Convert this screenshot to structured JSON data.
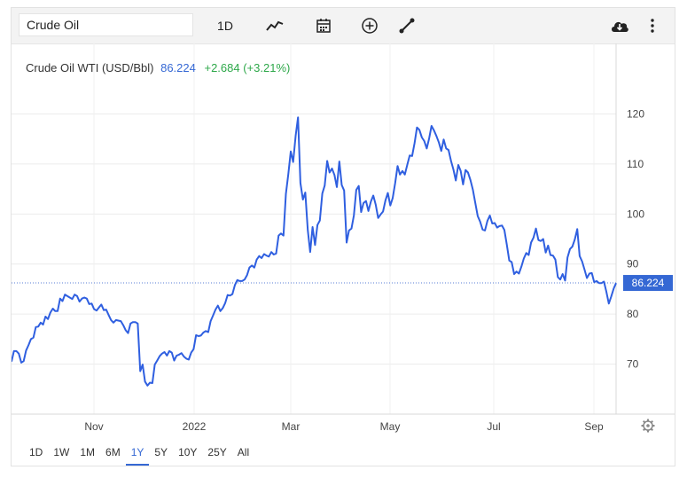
{
  "toolbar": {
    "search_value": "Crude Oil",
    "interval_label": "1D",
    "icons": [
      "line-chart-icon",
      "calendar-icon",
      "add-circle-icon",
      "draw-line-icon",
      "cloud-download-icon",
      "more-vertical-icon"
    ]
  },
  "legend": {
    "name": "Crude Oil WTI (USD/Bbl)",
    "price": "86.224",
    "change": "+2.684 (+3.21%)"
  },
  "price_tag": "86.224",
  "ranges": [
    "1D",
    "1W",
    "1M",
    "6M",
    "1Y",
    "5Y",
    "10Y",
    "25Y",
    "All"
  ],
  "active_range": "1Y",
  "colors": {
    "line": "#2f5fe0",
    "accent": "#3568d4",
    "up": "#2ea84a"
  },
  "chart_data": {
    "type": "line",
    "title": "Crude Oil WTI (USD/Bbl)",
    "x_tick_labels": [
      "Nov",
      "2022",
      "Mar",
      "May",
      "Jul",
      "Sep"
    ],
    "y_ticks": [
      70,
      80,
      90,
      100,
      110,
      120
    ],
    "ylim": [
      60,
      127
    ],
    "last_value": 86.224,
    "grid": true,
    "series": [
      {
        "name": "Crude Oil WTI (USD/Bbl)",
        "values": [
          70.5,
          72.6,
          72.6,
          72.1,
          70.3,
          70.6,
          72.7,
          73.8,
          75.0,
          75.3,
          77.4,
          77.5,
          78.3,
          77.9,
          79.5,
          79.0,
          80.3,
          81.1,
          80.6,
          80.6,
          83.1,
          82.6,
          83.9,
          83.6,
          83.3,
          83.0,
          83.9,
          83.6,
          82.5,
          83.1,
          83.3,
          83.1,
          82.0,
          82.1,
          81.0,
          80.7,
          81.3,
          81.9,
          80.8,
          80.9,
          79.8,
          78.8,
          78.3,
          78.8,
          78.7,
          78.6,
          77.8,
          76.8,
          76.2,
          78.1,
          78.4,
          78.4,
          78.1,
          68.6,
          69.9,
          66.5,
          65.7,
          66.3,
          66.2,
          69.9,
          70.7,
          71.6,
          72.1,
          72.4,
          71.7,
          72.6,
          72.3,
          70.7,
          71.7,
          71.9,
          72.2,
          71.5,
          71.1,
          70.9,
          72.3,
          73.0,
          75.8,
          75.6,
          75.7,
          76.3,
          76.6,
          76.4,
          78.6,
          79.7,
          80.9,
          81.7,
          80.6,
          81.2,
          82.2,
          83.8,
          83.7,
          84.0,
          85.8,
          86.8,
          86.6,
          86.6,
          86.9,
          87.8,
          89.3,
          89.7,
          89.3,
          90.9,
          91.6,
          91.2,
          92.0,
          91.7,
          91.5,
          92.4,
          91.9,
          92.1,
          95.7,
          96.1,
          95.7,
          104.0,
          107.9,
          112.5,
          110.4,
          115.6,
          119.3,
          106.2,
          102.9,
          104.3,
          96.8,
          92.4,
          97.4,
          93.8,
          97.8,
          98.7,
          104.1,
          105.7,
          110.6,
          108.3,
          109.1,
          107.8,
          105.4,
          110.5,
          105.8,
          104.7,
          94.3,
          96.7,
          97.1,
          99.7,
          104.8,
          105.6,
          100.4,
          102.2,
          102.6,
          100.6,
          102.5,
          103.7,
          101.9,
          99.2,
          99.9,
          100.5,
          102.7,
          104.2,
          101.7,
          103.2,
          106.2,
          109.6,
          107.9,
          108.6,
          107.9,
          109.8,
          111.7,
          111.6,
          114.2,
          117.3,
          116.8,
          115.3,
          114.6,
          113.1,
          115.1,
          117.6,
          116.7,
          115.6,
          114.3,
          112.6,
          114.9,
          113.1,
          112.8,
          110.6,
          108.9,
          106.7,
          109.8,
          108.6,
          105.9,
          108.8,
          108.3,
          106.8,
          104.9,
          102.3,
          99.6,
          98.5,
          96.9,
          96.7,
          98.6,
          99.7,
          98.1,
          98.2,
          97.3,
          97.6,
          97.7,
          96.8,
          93.9,
          90.7,
          90.4,
          88.0,
          88.5,
          88.1,
          89.5,
          91.1,
          92.2,
          91.8,
          94.3,
          95.3,
          97.1,
          94.8,
          94.6,
          95.0,
          92.3,
          93.7,
          91.8,
          91.7,
          90.9,
          87.4,
          86.9,
          88.0,
          86.7,
          91.3,
          93.0,
          93.5,
          94.9,
          97.0,
          91.6,
          90.5,
          88.9,
          87.2,
          88.1,
          88.2,
          86.4,
          86.6,
          86.2,
          86.2,
          86.5,
          84.5,
          82.1,
          83.5,
          85.1,
          86.2
        ]
      }
    ]
  }
}
